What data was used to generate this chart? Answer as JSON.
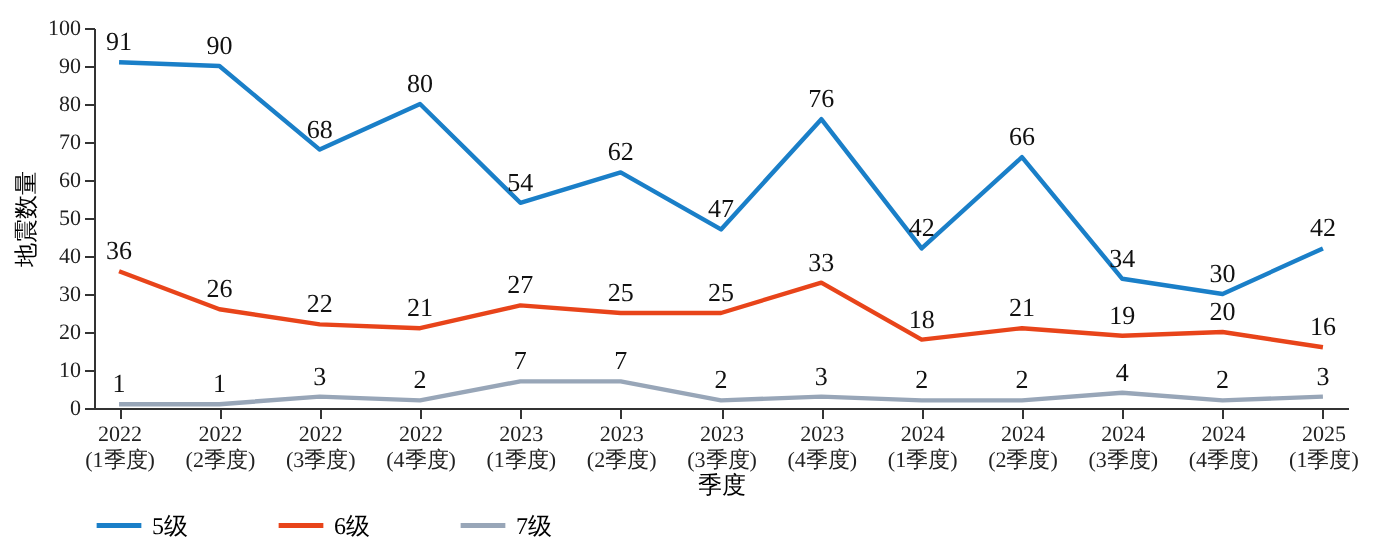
{
  "chart_data": {
    "type": "line",
    "xlabel": "季度",
    "ylabel": "地震数量",
    "categories": [
      "2022\n(1季度)",
      "2022\n(2季度)",
      "2022\n(3季度)",
      "2022\n(4季度)",
      "2023\n(1季度)",
      "2023\n(2季度)",
      "2023\n(3季度)",
      "2023\n(4季度)",
      "2024\n(1季度)",
      "2024\n(2季度)",
      "2024\n(3季度)",
      "2024\n(4季度)",
      "2025\n(1季度)"
    ],
    "series": [
      {
        "name": "5级",
        "color": "#1a7fc8",
        "values": [
          91,
          90,
          68,
          80,
          54,
          62,
          47,
          76,
          42,
          66,
          34,
          30,
          42
        ]
      },
      {
        "name": "6级",
        "color": "#e8441a",
        "values": [
          36,
          26,
          22,
          21,
          27,
          25,
          25,
          33,
          18,
          21,
          19,
          20,
          16
        ]
      },
      {
        "name": "7级",
        "color": "#98a6b8",
        "values": [
          1,
          1,
          3,
          2,
          7,
          7,
          2,
          3,
          2,
          2,
          4,
          2,
          3
        ]
      }
    ],
    "ylim": [
      0,
      100
    ],
    "yticks": [
      0,
      10,
      20,
      30,
      40,
      50,
      60,
      70,
      80,
      90,
      100
    ],
    "grid": false,
    "legend": "bottom",
    "data_labels": true,
    "marker": "none",
    "line_style": "solid"
  }
}
